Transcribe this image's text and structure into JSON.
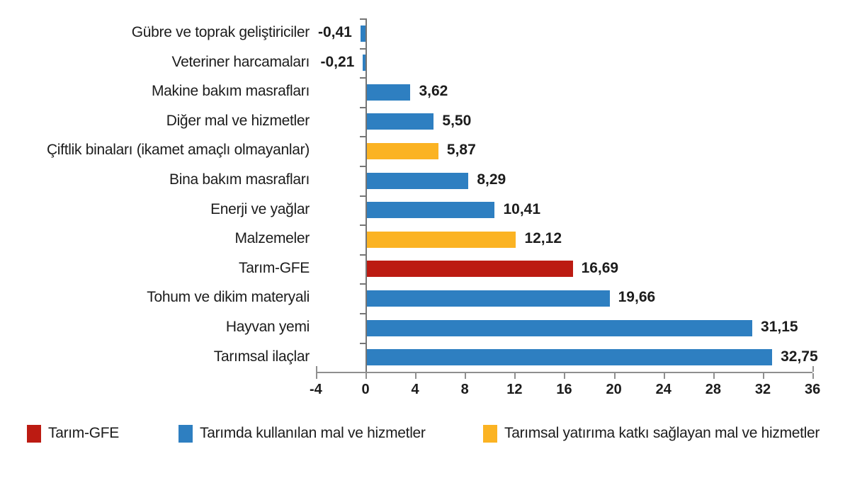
{
  "chart": {
    "background": "#ffffff",
    "colors": {
      "blue": "#2E7FC1",
      "yellow": "#FBB323",
      "red": "#BC1B12"
    },
    "axis": {
      "x_line_color": "#8f8f8f",
      "y_line_color": "#757575",
      "text_color": "#1c1c1c"
    }
  },
  "chart_data": {
    "type": "bar",
    "orientation": "horizontal",
    "title": "",
    "xlabel": "",
    "ylabel": "",
    "xlim": [
      -4,
      36
    ],
    "x_ticks": [
      -4,
      0,
      4,
      8,
      12,
      16,
      20,
      24,
      28,
      32,
      36
    ],
    "grid": false,
    "legend_position": "bottom",
    "value_format": "decimal-comma",
    "bars": [
      {
        "label": "Gübre ve toprak geliştiriciler",
        "value": -0.41,
        "value_label": "-0,41",
        "group": "blue"
      },
      {
        "label": "Veteriner harcamaları",
        "value": -0.21,
        "value_label": "-0,21",
        "group": "blue"
      },
      {
        "label": "Makine bakım masrafları",
        "value": 3.62,
        "value_label": "3,62",
        "group": "blue"
      },
      {
        "label": "Diğer mal ve hizmetler",
        "value": 5.5,
        "value_label": "5,50",
        "group": "blue"
      },
      {
        "label": "Çiftlik binaları (ikamet amaçlı olmayanlar)",
        "value": 5.87,
        "value_label": "5,87",
        "group": "yellow"
      },
      {
        "label": "Bina bakım masrafları",
        "value": 8.29,
        "value_label": "8,29",
        "group": "blue"
      },
      {
        "label": "Enerji ve yağlar",
        "value": 10.41,
        "value_label": "10,41",
        "group": "blue"
      },
      {
        "label": "Malzemeler",
        "value": 12.12,
        "value_label": "12,12",
        "group": "yellow"
      },
      {
        "label": "Tarım-GFE",
        "value": 16.69,
        "value_label": "16,69",
        "group": "red"
      },
      {
        "label": "Tohum ve dikim materyali",
        "value": 19.66,
        "value_label": "19,66",
        "group": "blue"
      },
      {
        "label": "Hayvan yemi",
        "value": 31.15,
        "value_label": "31,15",
        "group": "blue"
      },
      {
        "label": "Tarımsal ilaçlar",
        "value": 32.75,
        "value_label": "32,75",
        "group": "blue"
      }
    ],
    "legend": [
      {
        "label": "Tarım-GFE",
        "group": "red"
      },
      {
        "label": "Tarımda kullanılan mal ve hizmetler",
        "group": "blue"
      },
      {
        "label": "Tarımsal yatırıma katkı sağlayan mal ve hizmetler",
        "group": "yellow"
      }
    ]
  }
}
